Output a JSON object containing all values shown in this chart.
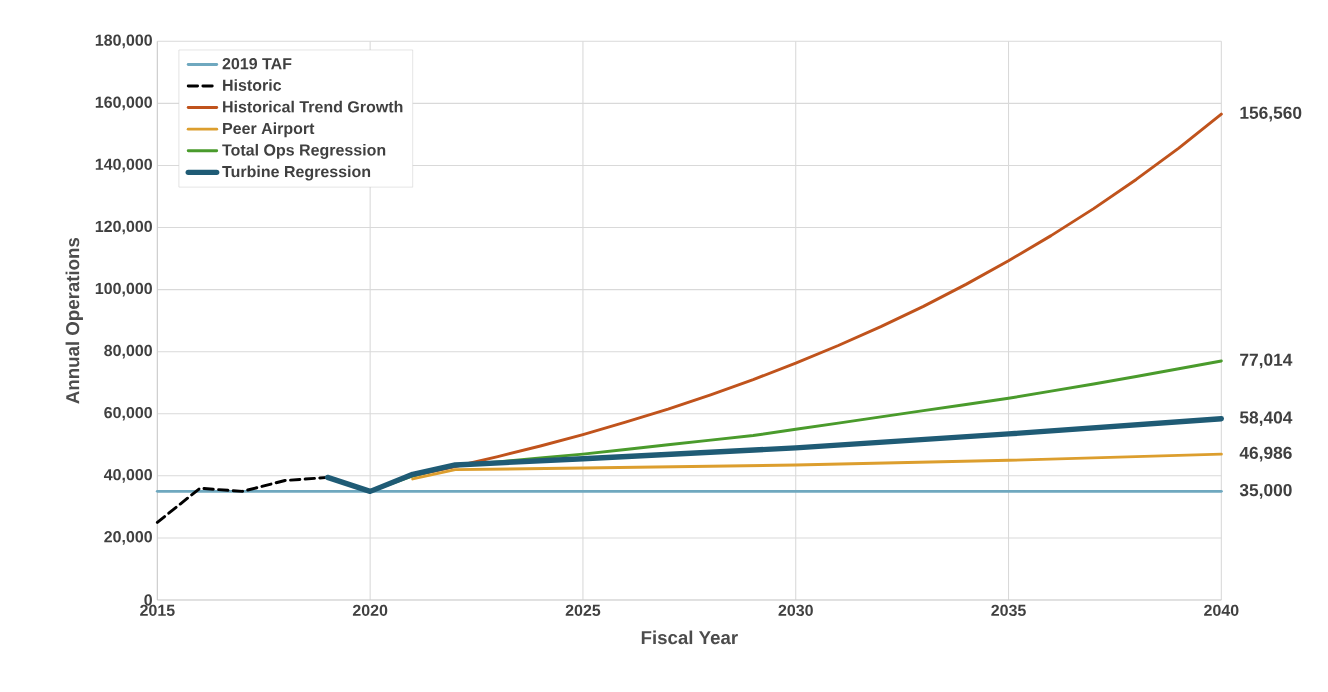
{
  "chart_data": {
    "type": "line",
    "xlabel": "Fiscal Year",
    "ylabel": "Annual Operations",
    "xlim": [
      2015,
      2040
    ],
    "xticks": [
      2015,
      2020,
      2025,
      2030,
      2035,
      2040
    ],
    "ylim": [
      0,
      180000
    ],
    "yticks": [
      0,
      {
        "value": 20000,
        "label": "20,000"
      },
      {
        "value": 40000,
        "label": "40,000"
      },
      {
        "value": 60000,
        "label": "60,000"
      },
      {
        "value": 80000,
        "label": "80,000"
      },
      {
        "value": 100000,
        "label": "100,000"
      },
      {
        "value": 120000,
        "label": "120,000"
      },
      {
        "value": 140000,
        "label": "140,000"
      },
      {
        "value": 160000,
        "label": "160,000"
      },
      {
        "value": 180000,
        "label": "180,000"
      }
    ],
    "grid": true,
    "legend": "top left",
    "marker": "none",
    "line_style": "solid",
    "series": [
      {
        "name": "2019 TAF",
        "color": "#6fa8bf",
        "x": [
          2015,
          2040
        ],
        "values": [
          35000,
          35000
        ],
        "value_labels": [
          null,
          "35,000"
        ]
      },
      {
        "name": "Historic",
        "color": "#000000",
        "line_style": "dashed",
        "x": [
          2015,
          2016,
          2017,
          2018,
          2019
        ],
        "values": [
          25000,
          36000,
          35000,
          38500,
          39500
        ]
      },
      {
        "name": "Historical Trend Growth",
        "color": "#c0531c",
        "x": [
          2021,
          2022,
          2023,
          2024,
          2025,
          2026,
          2027,
          2028,
          2029,
          2030,
          2031,
          2032,
          2033,
          2034,
          2035,
          2036,
          2037,
          2038,
          2039,
          2040
        ],
        "values": [
          40000,
          43000,
          46200,
          49600,
          53300,
          57300,
          61500,
          66100,
          71000,
          76300,
          82000,
          88100,
          94600,
          101700,
          109300,
          117400,
          126100,
          135500,
          145600,
          156560
        ],
        "value_labels": [
          null,
          null,
          null,
          null,
          null,
          null,
          null,
          null,
          null,
          null,
          null,
          null,
          null,
          null,
          null,
          null,
          null,
          null,
          null,
          "156,560"
        ]
      },
      {
        "name": "Peer Airport",
        "color": "#dc9e2e",
        "x": [
          2021,
          2022,
          2025,
          2030,
          2035,
          2040
        ],
        "values": [
          39000,
          42000,
          42500,
          43500,
          45000,
          46986
        ],
        "value_labels": [
          null,
          null,
          null,
          null,
          null,
          "46,986"
        ]
      },
      {
        "name": "Total Ops Regression",
        "color": "#4a9b2c",
        "x": [
          2020,
          2021,
          2022,
          2023,
          2024,
          2025,
          2026,
          2027,
          2028,
          2029,
          2030,
          2031,
          2032,
          2033,
          2034,
          2035,
          2036,
          2037,
          2038,
          2039,
          2040
        ],
        "values": [
          35000,
          40000,
          43500,
          44500,
          45800,
          47000,
          48500,
          50000,
          51500,
          53000,
          55000,
          57000,
          59000,
          61000,
          63000,
          65000,
          67300,
          69600,
          72000,
          74500,
          77014
        ],
        "value_labels": [
          null,
          null,
          null,
          null,
          null,
          null,
          null,
          null,
          null,
          null,
          null,
          null,
          null,
          null,
          null,
          null,
          null,
          null,
          null,
          null,
          "77,014"
        ]
      },
      {
        "name": "Turbine Regression",
        "color": "#1f5b75",
        "x": [
          2019,
          2020,
          2021,
          2022,
          2025,
          2030,
          2035,
          2040
        ],
        "values": [
          39500,
          35000,
          40500,
          43500,
          45500,
          49000,
          53500,
          58404
        ],
        "value_labels": [
          null,
          null,
          null,
          null,
          null,
          null,
          null,
          "58,404"
        ]
      }
    ]
  }
}
